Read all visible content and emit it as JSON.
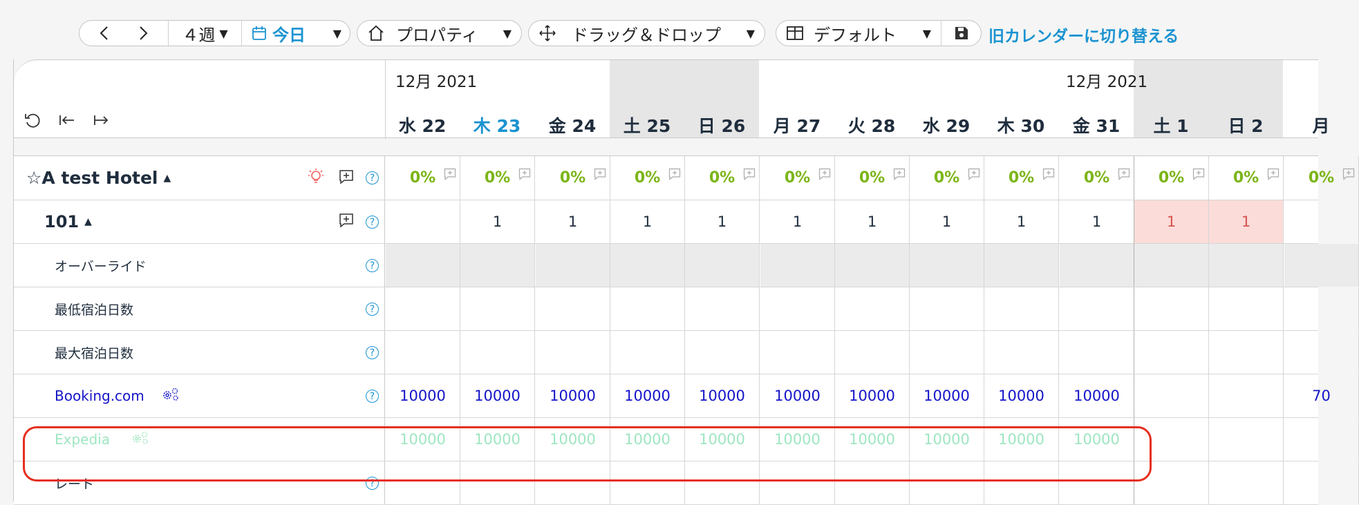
{
  "toolbar": {
    "range_label": "４週",
    "today_label": "今日",
    "property_label": "プロパティ",
    "dragdrop_label": "ドラッグ＆ドロップ",
    "view_label": "デフォルト",
    "old_calendar_link": "旧カレンダーに切り替える"
  },
  "header": {
    "month_left": "12月 2021",
    "month_right": "12月 2021",
    "days": [
      {
        "label": "水 22",
        "weekend": false,
        "current": false
      },
      {
        "label": "木 23",
        "weekend": false,
        "current": true
      },
      {
        "label": "金 24",
        "weekend": false,
        "current": false
      },
      {
        "label": "土 25",
        "weekend": true,
        "current": false
      },
      {
        "label": "日 26",
        "weekend": true,
        "current": false
      },
      {
        "label": "月 27",
        "weekend": false,
        "current": false
      },
      {
        "label": "火 28",
        "weekend": false,
        "current": false
      },
      {
        "label": "水 29",
        "weekend": false,
        "current": false
      },
      {
        "label": "木 30",
        "weekend": false,
        "current": false
      },
      {
        "label": "金 31",
        "weekend": false,
        "current": false
      },
      {
        "label": "土 1",
        "weekend": true,
        "current": false
      },
      {
        "label": "日 2",
        "weekend": true,
        "current": false
      },
      {
        "label": "月",
        "weekend": false,
        "current": false
      }
    ]
  },
  "hotel": {
    "name": "☆A test Hotel",
    "occupancy": [
      "0%",
      "0%",
      "0%",
      "0%",
      "0%",
      "0%",
      "0%",
      "0%",
      "0%",
      "0%",
      "0%",
      "0%",
      "0%"
    ]
  },
  "room": {
    "name": "101",
    "availability": [
      "",
      "1",
      "1",
      "1",
      "1",
      "1",
      "1",
      "1",
      "1",
      "1",
      "1",
      "1",
      ""
    ]
  },
  "rows": {
    "override": "オーバーライド",
    "min_stay": "最低宿泊日数",
    "max_stay": "最大宿泊日数",
    "rate": "レート"
  },
  "channels": {
    "booking": {
      "name": "Booking.com",
      "values": [
        "10000",
        "10000",
        "10000",
        "10000",
        "10000",
        "10000",
        "10000",
        "10000",
        "10000",
        "10000",
        "",
        "",
        "70"
      ]
    },
    "expedia": {
      "name": "Expedia",
      "values": [
        "10000",
        "10000",
        "10000",
        "10000",
        "10000",
        "10000",
        "10000",
        "10000",
        "10000",
        "10000",
        "",
        "",
        ""
      ]
    }
  },
  "colors": {
    "accent": "#1a93d1",
    "occupancy": "#7cb518",
    "booking_text": "#1414c8",
    "expedia_text": "#9ee6c0",
    "highlight": "#e62e1f",
    "closed_cell": "#fbdcd9"
  }
}
